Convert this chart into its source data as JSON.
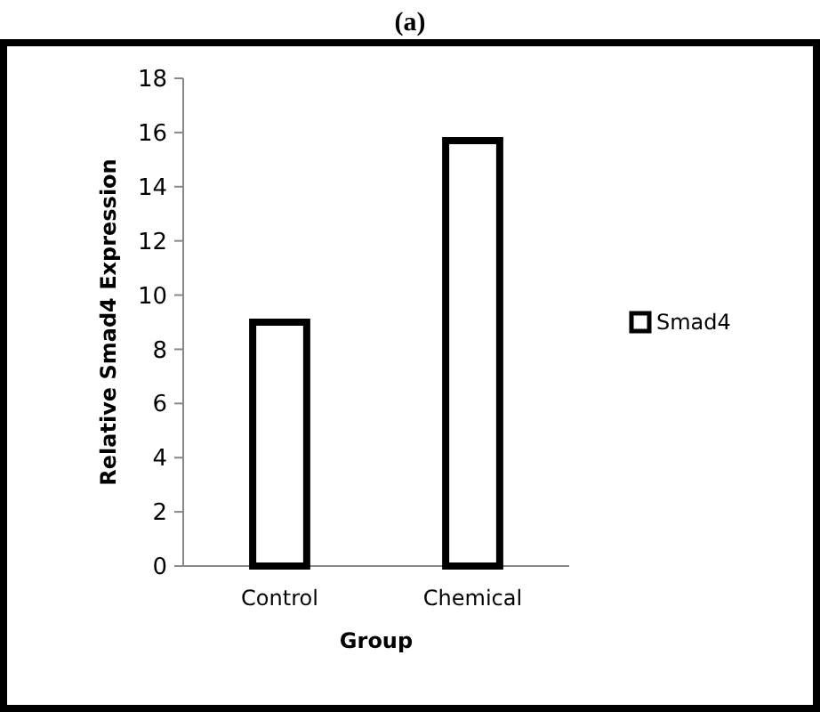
{
  "chart_data": {
    "type": "bar",
    "title": "(a)",
    "xlabel": "Group",
    "ylabel": "Relative Smad4 Expression",
    "categories": [
      "Control",
      "Chemical"
    ],
    "series": [
      {
        "name": "Smad4",
        "color": "#ffffff",
        "values": [
          9.0,
          15.7
        ]
      }
    ],
    "ylim": [
      0,
      18
    ],
    "yticks": [
      0,
      2,
      4,
      6,
      8,
      10,
      12,
      14,
      16,
      18
    ],
    "grid": false,
    "legend": "right"
  }
}
